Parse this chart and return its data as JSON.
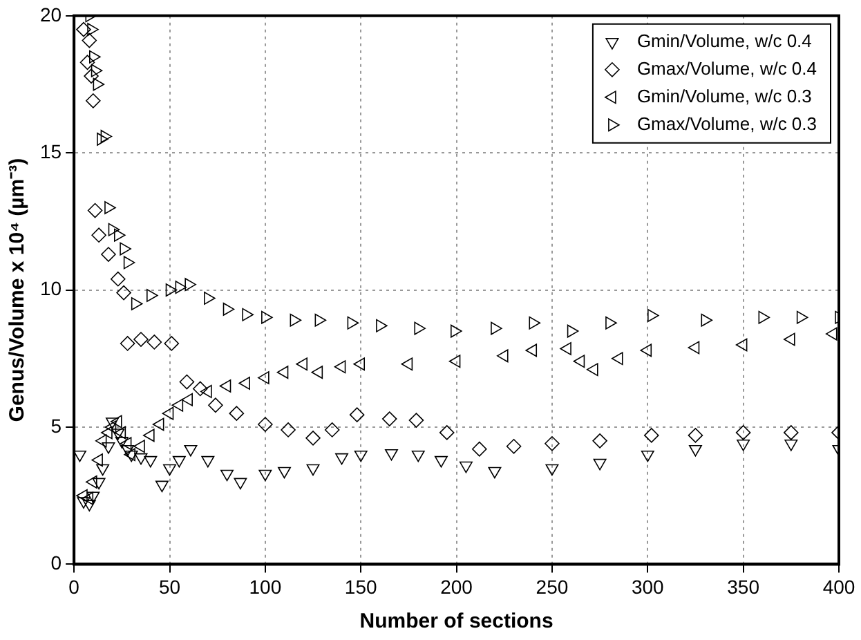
{
  "chart_data": {
    "type": "scatter",
    "xlabel": "Number of sections",
    "ylabel": "Genus/Volume x 10⁴ (µm⁻³)",
    "xlim": [
      0,
      400
    ],
    "xticks": [
      0,
      50,
      100,
      150,
      200,
      250,
      300,
      350,
      400
    ],
    "ylim": [
      0,
      20
    ],
    "yticks": [
      0,
      5,
      10,
      15,
      20
    ],
    "grid": true,
    "legend": "top right",
    "series": [
      {
        "name": "Gmin/Volume, w/c 0.4",
        "color": "#000000",
        "marker": "triangle",
        "x": [
          3,
          5,
          8,
          10,
          13,
          15,
          18,
          20,
          23,
          25,
          28,
          30,
          35,
          40,
          46,
          50,
          55,
          61,
          70,
          80,
          87,
          100,
          110,
          125,
          140,
          150,
          166,
          180,
          192,
          205,
          220,
          250,
          275,
          300,
          325,
          350,
          375,
          400
        ],
        "values": [
          4,
          2.3,
          2.2,
          2.5,
          3,
          3.5,
          4.3,
          5.2,
          4.8,
          4.5,
          4.2,
          4,
          3.9,
          3.8,
          2.9,
          3.5,
          3.8,
          4.2,
          3.8,
          3.3,
          3,
          3.3,
          3.4,
          3.5,
          3.9,
          4,
          4.05,
          4,
          3.8,
          3.6,
          3.4,
          3.5,
          3.7,
          4,
          4.2,
          4.4,
          4.4,
          4.2
        ]
      },
      {
        "name": "Gmax/Volume, w/c 0.4",
        "color": "#000000",
        "marker": "diamond",
        "x": [
          5,
          7,
          8,
          9,
          10,
          11,
          13,
          18,
          23,
          26,
          28,
          35,
          42,
          51,
          59,
          66,
          74,
          85,
          100,
          112,
          125,
          135,
          148,
          165,
          179,
          195,
          212,
          230,
          250,
          275,
          302,
          325,
          350,
          375,
          400
        ],
        "values": [
          19.5,
          18.3,
          19.1,
          17.8,
          16.9,
          12.9,
          12,
          11.3,
          10.4,
          9.9,
          8.05,
          8.2,
          8.1,
          8.05,
          6.65,
          6.4,
          5.8,
          5.5,
          5.1,
          4.9,
          4.6,
          4.9,
          5.45,
          5.3,
          5.25,
          4.8,
          4.2,
          4.3,
          4.4,
          4.5,
          4.7,
          4.7,
          4.8,
          4.8,
          4.8
        ]
      },
      {
        "name": "Gmin/Volume, w/c 0.3",
        "color": "#000000",
        "marker": "triangle",
        "x": [
          5,
          8,
          10,
          13,
          15,
          18,
          20,
          23,
          25,
          28,
          30,
          35,
          40,
          45,
          50,
          55,
          60,
          70,
          80,
          90,
          100,
          110,
          120,
          128,
          140,
          150,
          175,
          200,
          225,
          240,
          258,
          265,
          272,
          285,
          300,
          325,
          350,
          375,
          397
        ],
        "values": [
          2.5,
          2.4,
          3,
          3.8,
          4.5,
          4.8,
          5,
          5.2,
          4.8,
          4.4,
          4,
          4.3,
          4.7,
          5.1,
          5.5,
          5.8,
          6,
          6.3,
          6.5,
          6.6,
          6.8,
          7,
          7.3,
          7,
          7.2,
          7.3,
          7.3,
          7.4,
          7.6,
          7.8,
          7.86,
          7.4,
          7.1,
          7.5,
          7.8,
          7.9,
          8,
          8.2,
          8.4
        ]
      },
      {
        "name": "Gmax/Volume, w/c 0.3",
        "color": "#000000",
        "marker": "triangle",
        "x": [
          8,
          9,
          10,
          11,
          12,
          14,
          16,
          18,
          20,
          23,
          26,
          28,
          32,
          40,
          50,
          55,
          60,
          70,
          80,
          90,
          100,
          115,
          128,
          145,
          160,
          180,
          199,
          220,
          240,
          260,
          280,
          302,
          330,
          360,
          380,
          400
        ],
        "values": [
          20,
          19.5,
          18.5,
          18,
          17.5,
          15.5,
          15.6,
          13,
          12.2,
          12,
          11.5,
          11,
          9.5,
          9.8,
          10,
          10.1,
          10.2,
          9.7,
          9.3,
          9.1,
          9,
          8.9,
          8.9,
          8.8,
          8.7,
          8.6,
          8.5,
          8.6,
          8.8,
          8.5,
          8.8,
          9.07,
          8.9,
          9,
          9,
          9
        ]
      }
    ]
  }
}
